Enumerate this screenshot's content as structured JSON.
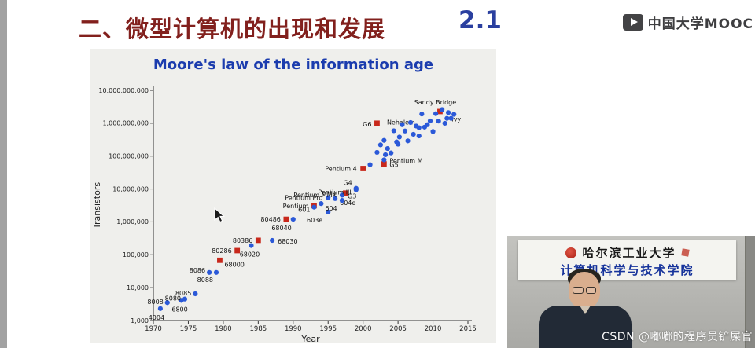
{
  "header": {
    "title": "二、微型计算机的出现和发展",
    "section_number": "2.1",
    "brand": "中国大学MOOC",
    "brand_icon": "play-icon"
  },
  "chart_data": {
    "type": "scatter",
    "title": "Moore's law of the information age",
    "xlabel": "Year",
    "ylabel": "Transistors",
    "xlim": [
      1970,
      2015
    ],
    "ylim": [
      1000,
      10000000000
    ],
    "x_ticks": [
      1970,
      1975,
      1980,
      1985,
      1990,
      1995,
      2000,
      2005,
      2010,
      2015
    ],
    "y_ticks": [
      1000,
      10000,
      100000,
      1000000,
      10000000,
      100000000,
      1000000000,
      10000000000
    ],
    "legend": "none",
    "grid": false,
    "series": [
      {
        "name": "red-square-processors",
        "marker": "square",
        "color": "#c8281b",
        "points": [
          {
            "label": "68000",
            "year": 1979.5,
            "transistors": 68000,
            "anchor": "start",
            "dx": 6,
            "dy": 8
          },
          {
            "label": "80286",
            "year": 1982,
            "transistors": 134000,
            "anchor": "end",
            "dx": -7,
            "dy": 3
          },
          {
            "label": "80386",
            "year": 1985,
            "transistors": 275000,
            "anchor": "end",
            "dx": -7,
            "dy": 3
          },
          {
            "label": "80486",
            "year": 1989,
            "transistors": 1200000,
            "anchor": "end",
            "dx": -7,
            "dy": 3
          },
          {
            "label": "Pentium",
            "year": 1993,
            "transistors": 3100000,
            "anchor": "end",
            "dx": -7,
            "dy": 3
          },
          {
            "year": 1997.5,
            "transistors": 7500000
          },
          {
            "label": "Pentium 4",
            "year": 2000,
            "transistors": 42000000,
            "anchor": "end",
            "dx": -8,
            "dy": 3
          },
          {
            "label": "G5",
            "year": 2003,
            "transistors": 58000000,
            "anchor": "start",
            "dx": 7,
            "dy": 4
          },
          {
            "label": "G6",
            "year": 2002,
            "transistors": 1000000000,
            "anchor": "end",
            "dx": -7,
            "dy": 4
          },
          {
            "label": "Sandy Bridge",
            "year": 2011,
            "transistors": 2270000000,
            "anchor": "middle",
            "dx": -6,
            "dy": -9
          }
        ]
      },
      {
        "name": "blue-dot-processors",
        "marker": "circle",
        "color": "#2b59d8",
        "points": [
          {
            "label": "4004",
            "year": 1971,
            "transistors": 2300,
            "anchor": "middle",
            "dx": -5,
            "dy": 14
          },
          {
            "label": "8008",
            "year": 1972,
            "transistors": 3500,
            "anchor": "end",
            "dx": -5,
            "dy": 2
          },
          {
            "label": "6800",
            "year": 1974,
            "transistors": 4100,
            "anchor": "middle",
            "dx": -2,
            "dy": 14
          },
          {
            "label": "8080",
            "year": 1974.5,
            "transistors": 4500,
            "anchor": "end",
            "dx": -5,
            "dy": 2
          },
          {
            "label": "8085",
            "year": 1976,
            "transistors": 6500,
            "anchor": "end",
            "dx": -5,
            "dy": 2
          },
          {
            "label": "8086",
            "year": 1978,
            "transistors": 29000,
            "anchor": "end",
            "dx": -5,
            "dy": 0
          },
          {
            "label": "8088",
            "year": 1979,
            "transistors": 29000,
            "anchor": "end",
            "dx": -4,
            "dy": 12
          },
          {
            "label": "68020",
            "year": 1984,
            "transistors": 190000,
            "anchor": "middle",
            "dx": -2,
            "dy": 14
          },
          {
            "label": "68030",
            "year": 1987,
            "transistors": 273000,
            "anchor": "start",
            "dx": 7,
            "dy": 4
          },
          {
            "label": "68040",
            "year": 1990,
            "transistors": 1200000,
            "anchor": "end",
            "dx": -2,
            "dy": 14
          },
          {
            "label": "601",
            "year": 1993,
            "transistors": 2800000,
            "anchor": "end",
            "dx": -5,
            "dy": 6
          },
          {
            "label": "603e",
            "year": 1995,
            "transistors": 2000000,
            "anchor": "end",
            "dx": -7,
            "dy": 13
          },
          {
            "label": "604",
            "year": 1994,
            "transistors": 3600000,
            "anchor": "start",
            "dx": 5,
            "dy": 9
          },
          {
            "label": "604e",
            "year": 1996,
            "transistors": 5100000,
            "anchor": "start",
            "dx": 6,
            "dy": 8
          },
          {
            "label": "G3",
            "year": 1997,
            "transistors": 6500000,
            "anchor": "start",
            "dx": 7,
            "dy": 4
          },
          {
            "label": "Pentium Pro",
            "year": 1995,
            "transistors": 5500000,
            "anchor": "end",
            "dx": -7,
            "dy": 3
          },
          {
            "label": "Pentium MMX",
            "year": 1997,
            "transistors": 4500000,
            "anchor": "end",
            "dx": -7,
            "dy": -4
          },
          {
            "label": "G4",
            "year": 1999,
            "transistors": 10500000,
            "anchor": "end",
            "dx": -5,
            "dy": -4
          },
          {
            "label": "Pentium III",
            "year": 1999,
            "transistors": 9500000,
            "anchor": "end",
            "dx": -6,
            "dy": 6
          },
          {
            "label": "Pentium M",
            "year": 2003,
            "transistors": 77000000,
            "anchor": "start",
            "dx": 7,
            "dy": 4
          },
          {
            "label": "Nehalem",
            "year": 2008,
            "transistors": 731000000,
            "anchor": "end",
            "dx": -5,
            "dy": -4
          },
          {
            "label": "Ivy",
            "year": 2012,
            "transistors": 1400000000,
            "anchor": "start",
            "dx": 6,
            "dy": 4
          },
          {
            "year": 2001,
            "transistors": 55000000
          },
          {
            "year": 2002,
            "transistors": 130000000
          },
          {
            "year": 2002.5,
            "transistors": 220000000
          },
          {
            "year": 2003,
            "transistors": 300000000
          },
          {
            "year": 2003.2,
            "transistors": 110000000
          },
          {
            "year": 2003.5,
            "transistors": 170000000
          },
          {
            "year": 2004,
            "transistors": 125000000
          },
          {
            "year": 2004.4,
            "transistors": 590000000
          },
          {
            "year": 2004.8,
            "transistors": 270000000
          },
          {
            "year": 2005,
            "transistors": 230000000
          },
          {
            "year": 2005.2,
            "transistors": 380000000
          },
          {
            "year": 2005.6,
            "transistors": 900000000
          },
          {
            "year": 2006,
            "transistors": 580000000
          },
          {
            "year": 2006.4,
            "transistors": 290000000
          },
          {
            "year": 2006.8,
            "transistors": 1050000000
          },
          {
            "year": 2007.2,
            "transistors": 460000000
          },
          {
            "year": 2007.6,
            "transistors": 820000000
          },
          {
            "year": 2008,
            "transistors": 410000000
          },
          {
            "year": 2008.4,
            "transistors": 1900000000
          },
          {
            "year": 2008.8,
            "transistors": 760000000
          },
          {
            "year": 2009.2,
            "transistors": 900000000
          },
          {
            "year": 2009.6,
            "transistors": 1170000000
          },
          {
            "year": 2010,
            "transistors": 560000000
          },
          {
            "year": 2010.4,
            "transistors": 1950000000
          },
          {
            "year": 2010.8,
            "transistors": 1160000000
          },
          {
            "year": 2011.3,
            "transistors": 2600000000
          },
          {
            "year": 2011.7,
            "transistors": 995000000
          },
          {
            "year": 2012.2,
            "transistors": 2100000000
          },
          {
            "year": 2012.6,
            "transistors": 1400000000
          },
          {
            "year": 2013,
            "transistors": 1860000000
          }
        ]
      }
    ]
  },
  "presenter": {
    "university": "哈尔滨工业大学",
    "department": "计算机科学与技术学院",
    "seal_icon": "university-seal-icon"
  },
  "watermark": "CSDN @嘟嘟的程序员铲屎官"
}
